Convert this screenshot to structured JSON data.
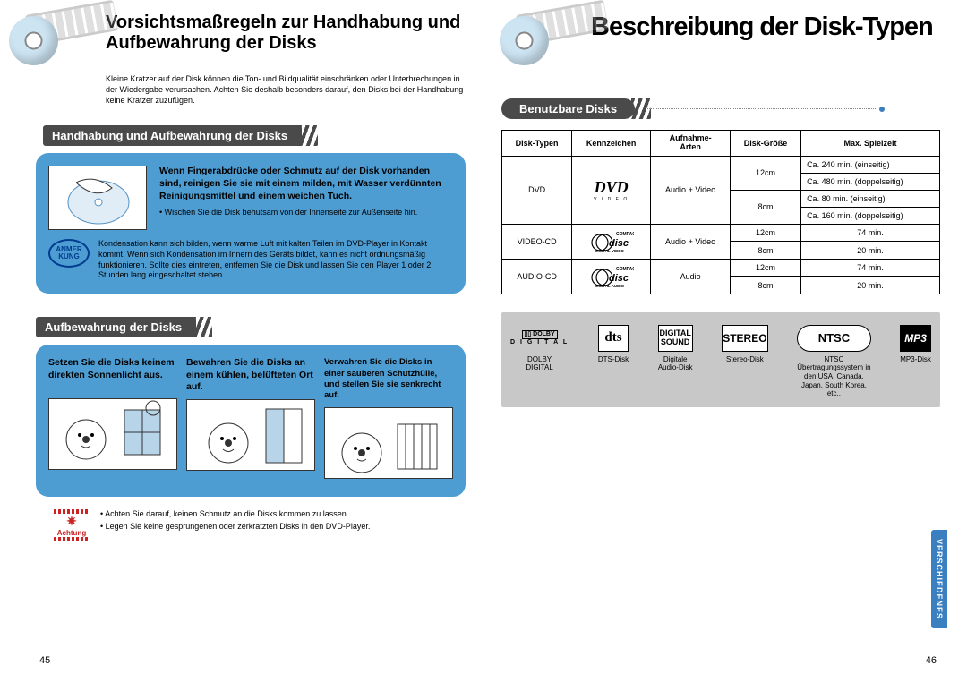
{
  "left": {
    "title": "Vorsichtsmaßregeln zur Handhabung und Aufbewahrung der Disks",
    "intro": "Kleine Kratzer auf der Disk können die Ton- und Bildqualität einschränken oder Unterbrechungen in der Wiedergabe verursachen. Achten Sie deshalb besonders darauf, den Disks bei der Handhabung keine Kratzer zuzufügen.",
    "section1_head": "Handhabung und Aufbewahrung der Disks",
    "box1_bold": "Wenn Fingerabdrücke oder Schmutz auf der Disk vorhanden sind, reinigen Sie sie mit einem milden, mit Wasser verdünnten Reinigungsmittel und einem weichen Tuch.",
    "box1_bullet": "Wischen Sie die Disk behutsam von der Innenseite zur Außenseite hin.",
    "note_badge": "ANMER\nKUNG",
    "note_text": "Kondensation kann sich bilden, wenn warme Luft mit kalten Teilen im DVD-Player in Kontakt kommt. Wenn sich Kondensation im Innern des Geräts bildet, kann es nicht ordnungsmäßig funktionieren. Sollte dies eintreten, entfernen Sie die Disk und lassen Sie den Player 1 oder 2 Stunden lang eingeschaltet stehen.",
    "section2_head": "Aufbewahrung der Disks",
    "storage": [
      "Setzen Sie die Disks keinem direkten Sonnenlicht aus.",
      "Bewahren Sie die Disks an einem kühlen, belüfteten Ort auf.",
      "Verwahren Sie die Disks in einer sauberen Schutzhülle, und stellen Sie sie senkrecht auf."
    ],
    "warn_label": "Achtung",
    "warn_bul1": "Achten Sie darauf, keinen Schmutz an die Disks kommen zu lassen.",
    "warn_bul2": "Legen Sie keine gesprungenen oder zerkratzten Disks in den DVD-Player.",
    "page_num": "45"
  },
  "right": {
    "title": "Beschreibung der Disk-Typen",
    "section_head": "Benutzbare Disks",
    "table": {
      "headers": [
        "Disk-Typen",
        "Kennzeichen",
        "Aufnahme-Arten",
        "Disk-Größe",
        "Max. Spielzeit"
      ],
      "rows": [
        {
          "type": "DVD",
          "logo": "DVD",
          "rec": "Audio + Video",
          "sizes": [
            {
              "s": "12cm",
              "t": [
                "Ca. 240 min. (einseitig)",
                "Ca. 480 min. (doppelseitig)"
              ]
            },
            {
              "s": "8cm",
              "t": [
                "Ca. 80 min. (einseitig)",
                "Ca. 160 min. (doppelseitig)"
              ]
            }
          ]
        },
        {
          "type": "VIDEO-CD",
          "logo": "CD-DV",
          "rec": "Audio + Video",
          "sizes": [
            {
              "s": "12cm",
              "t": [
                "74 min."
              ]
            },
            {
              "s": "8cm",
              "t": [
                "20 min."
              ]
            }
          ]
        },
        {
          "type": "AUDIO-CD",
          "logo": "CD-DA",
          "rec": "Audio",
          "sizes": [
            {
              "s": "12cm",
              "t": [
                "74 min."
              ]
            },
            {
              "s": "8cm",
              "t": [
                "20 min."
              ]
            }
          ]
        }
      ]
    },
    "logos": [
      {
        "box": "DOLBY",
        "label": "DOLBY\nDIGITAL"
      },
      {
        "box": "dts",
        "label": "DTS-Disk"
      },
      {
        "box": "DIGITAL\nSOUND",
        "label": "Digitale\nAudio-Disk"
      },
      {
        "box": "STEREO",
        "label": "Stereo-Disk"
      },
      {
        "box": "NTSC",
        "label": "NTSC\nÜbertragungssystem in\nden USA, Canada,\nJapan, South Korea,\netc.."
      },
      {
        "box": "MP3",
        "label": "MP3-Disk"
      }
    ],
    "side_tab": "VERSCHIEDENES",
    "page_num": "46"
  }
}
